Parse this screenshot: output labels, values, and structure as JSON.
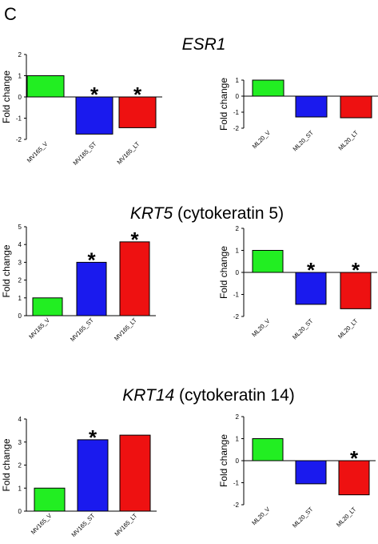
{
  "panel_letter": "C",
  "colors": {
    "green": "#22ee22",
    "blue": "#1a1aee",
    "red": "#ee1111"
  },
  "titles": [
    {
      "gene": "ESR1",
      "rest": ""
    },
    {
      "gene": "KRT5",
      "rest": " (cytokeratin 5)"
    },
    {
      "gene": "KRT14",
      "rest": " (cytokeratin 14)"
    }
  ],
  "chart_data": [
    {
      "type": "bar",
      "ylabel": "Fold change",
      "ylim": [
        -2,
        2
      ],
      "yticks": [
        -2,
        -1,
        0,
        1,
        2
      ],
      "categories": [
        "MV165_V",
        "MV165_ST",
        "MV165_LT"
      ],
      "values": [
        1.0,
        -1.75,
        -1.45
      ],
      "significant": [
        false,
        true,
        true
      ]
    },
    {
      "type": "bar",
      "ylabel": "Fold change",
      "ylim": [
        -2,
        1
      ],
      "yticks": [
        -2,
        -1,
        0,
        1
      ],
      "categories": [
        "ML20_V",
        "ML20_ST",
        "ML20_LT"
      ],
      "values": [
        1.0,
        -1.3,
        -1.35
      ],
      "significant": [
        false,
        false,
        false
      ]
    },
    {
      "type": "bar",
      "ylabel": "Fold change",
      "ylim": [
        0,
        5
      ],
      "yticks": [
        0,
        1,
        2,
        3,
        4,
        5
      ],
      "categories": [
        "MV165_V",
        "MV165_ST",
        "MV165_LT"
      ],
      "values": [
        1.0,
        3.0,
        4.15
      ],
      "significant": [
        false,
        true,
        true
      ]
    },
    {
      "type": "bar",
      "ylabel": "Fold change",
      "ylim": [
        -2,
        2
      ],
      "yticks": [
        -2,
        -1,
        0,
        1,
        2
      ],
      "categories": [
        "ML20_V",
        "ML20_ST",
        "ML20_LT"
      ],
      "values": [
        1.0,
        -1.45,
        -1.65
      ],
      "significant": [
        false,
        true,
        true
      ]
    },
    {
      "type": "bar",
      "ylabel": "Fold change",
      "ylim": [
        0,
        4
      ],
      "yticks": [
        0,
        1,
        2,
        3,
        4
      ],
      "categories": [
        "MV165_V",
        "MV165_ST",
        "MV165_LT"
      ],
      "values": [
        1.0,
        3.1,
        3.3
      ],
      "significant": [
        false,
        true,
        false
      ]
    },
    {
      "type": "bar",
      "ylabel": "Fold change",
      "ylim": [
        -2,
        2
      ],
      "yticks": [
        -2,
        -1,
        0,
        1,
        2
      ],
      "categories": [
        "ML20_V",
        "ML20_ST",
        "ML20_LT"
      ],
      "values": [
        1.0,
        -1.05,
        -1.55
      ],
      "significant": [
        false,
        false,
        true
      ]
    }
  ],
  "significance_marker": "*"
}
